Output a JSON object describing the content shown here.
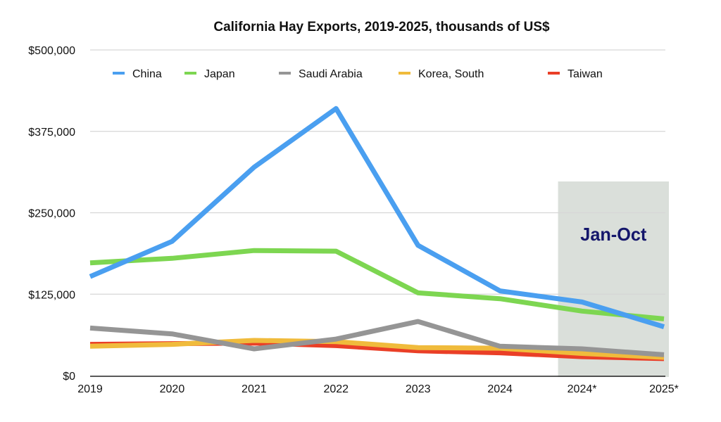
{
  "chart_data": {
    "type": "line",
    "title": "California Hay Exports, 2019-2025, thousands of US$",
    "xlabel": "",
    "ylabel": "",
    "categories": [
      "2019",
      "2020",
      "2021",
      "2022",
      "2023",
      "2024",
      "2024*",
      "2025*"
    ],
    "ylim": [
      0,
      500000
    ],
    "yticks": [
      0,
      125000,
      250000,
      375000,
      500000
    ],
    "ytick_labels": [
      "$0",
      "$125,000",
      "$250,000",
      "$375,000",
      "$500,000"
    ],
    "grid": true,
    "legend_position": "top",
    "series": [
      {
        "name": "China",
        "color": "#4a9ff0",
        "values": [
          152000,
          206000,
          320000,
          410000,
          200000,
          130000,
          113000,
          75000
        ]
      },
      {
        "name": "Japan",
        "color": "#7dd651",
        "values": [
          173000,
          180000,
          192000,
          191000,
          127000,
          118000,
          99000,
          87000
        ]
      },
      {
        "name": "Saudi Arabia",
        "color": "#959595",
        "values": [
          73000,
          64000,
          41000,
          56000,
          83000,
          45000,
          41000,
          32000
        ]
      },
      {
        "name": "Korea, South",
        "color": "#f0bb3c",
        "values": [
          45000,
          48000,
          54000,
          52000,
          43000,
          42000,
          34000,
          28000
        ]
      },
      {
        "name": "Taiwan",
        "color": "#ea3f27",
        "values": [
          48000,
          49000,
          50000,
          46000,
          38000,
          35000,
          29000,
          26000
        ]
      }
    ],
    "annotations": [
      {
        "text": "Jan-Oct",
        "text_color": "#14166b",
        "shade_color": "#dadfda",
        "x_range": [
          "2024*",
          "2025*"
        ]
      }
    ]
  }
}
